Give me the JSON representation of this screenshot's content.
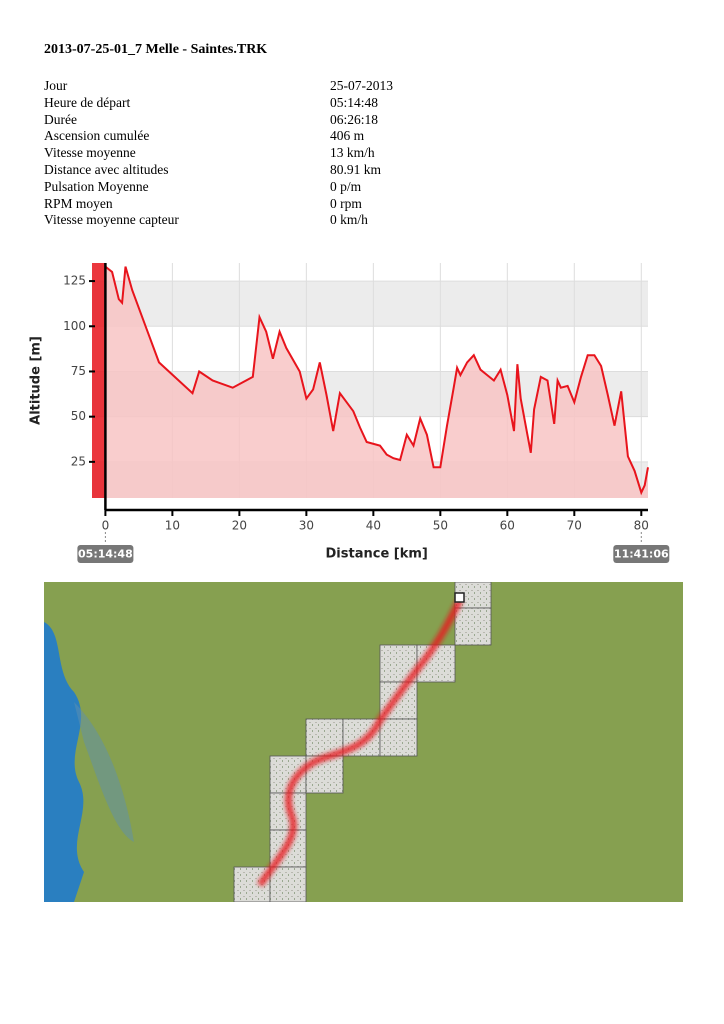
{
  "header": {
    "title": "2013-07-25-01_7 Melle - Saintes.TRK"
  },
  "table": {
    "rows": [
      [
        "Jour",
        "25-07-2013"
      ],
      [
        "Heure de départ",
        "05:14:48"
      ],
      [
        "Durée",
        "06:26:18"
      ],
      [
        "Ascension cumulée",
        "406 m"
      ],
      [
        "Vitesse moyenne",
        "13 km/h"
      ],
      [
        "Distance avec altitudes",
        "80.91 km"
      ],
      [
        "Pulsation Moyenne",
        "0 p/m"
      ],
      [
        "RPM moyen",
        "0 rpm"
      ],
      [
        "Vitesse moyenne capteur",
        "0 km/h"
      ]
    ]
  },
  "chart_data": {
    "type": "area",
    "x_label": "Distance [km]",
    "y_label": "Altitude [m]",
    "start_time": "05:14:48",
    "end_time": "11:41:06",
    "color": "#e8141c",
    "fill": "#f8c4c4",
    "grid": true,
    "xlim": [
      -2,
      81
    ],
    "ylim": [
      5,
      135
    ],
    "xticks": [
      0,
      10,
      20,
      30,
      40,
      50,
      60,
      70,
      80
    ],
    "yticks": [
      25,
      50,
      75,
      100,
      125
    ],
    "x": [
      0,
      1,
      2,
      2.5,
      3,
      4,
      6,
      8,
      13,
      14,
      16,
      19,
      21,
      22,
      23,
      24,
      25,
      26,
      27,
      29,
      30,
      31,
      32,
      33,
      34,
      35,
      37,
      38,
      39,
      41,
      42,
      43,
      44,
      45,
      46,
      47,
      48,
      49,
      50,
      51,
      52,
      52.5,
      53,
      54,
      55,
      56,
      57,
      58,
      59,
      60,
      61,
      61.5,
      62,
      63,
      63.5,
      64,
      65,
      66,
      67,
      67.5,
      68,
      69,
      70,
      71,
      72,
      73,
      74,
      75,
      76,
      77,
      78,
      79,
      80,
      80.5,
      81
    ],
    "values": [
      133,
      130,
      115,
      113,
      133,
      120,
      100,
      80,
      63,
      75,
      70,
      66,
      70,
      72,
      105,
      97,
      82,
      97,
      88,
      75,
      60,
      65,
      80,
      62,
      42,
      63,
      53,
      44,
      36,
      34,
      29,
      27,
      26,
      40,
      34,
      49,
      40,
      22,
      22,
      45,
      66,
      77,
      73,
      80,
      84,
      76,
      73,
      70,
      76,
      62,
      42,
      79,
      60,
      40,
      30,
      54,
      72,
      70,
      46,
      70,
      66,
      67,
      58,
      72,
      84,
      84,
      78,
      62,
      45,
      64,
      28,
      20,
      8,
      12,
      22
    ]
  }
}
